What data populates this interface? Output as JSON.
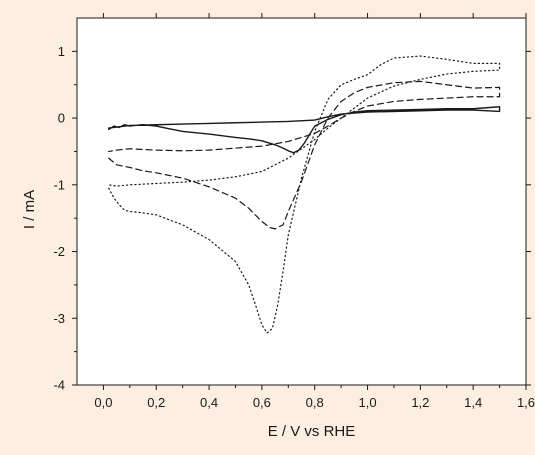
{
  "colors": {
    "page_background": "#fdeee2",
    "plot_background": "#ffffff",
    "ink": "#1a1a1a"
  },
  "chart_data": {
    "type": "line",
    "title": "",
    "xlabel": "E / V vs RHE",
    "ylabel": "I / mA",
    "xlim": [
      -0.1,
      1.6
    ],
    "ylim": [
      -4,
      1.5
    ],
    "x_ticks": [
      0.0,
      0.2,
      0.4,
      0.6,
      0.8,
      1.0,
      1.2,
      1.4,
      1.6
    ],
    "x_tick_labels": [
      "0,0",
      "0,2",
      "0,4",
      "0,6",
      "0,8",
      "1,0",
      "1,2",
      "1,4",
      "1,6"
    ],
    "y_ticks": [
      -4,
      -3,
      -2,
      -1,
      0,
      1
    ],
    "y_tick_labels": [
      "-4",
      "-3",
      "-2",
      "-1",
      "0",
      "1"
    ],
    "grid": false,
    "legend": "none",
    "series": [
      {
        "style": "solid",
        "x": [
          0.02,
          0.04,
          0.06,
          0.08,
          0.1,
          0.12,
          0.15,
          0.2,
          0.25,
          0.3,
          0.4,
          0.5,
          0.55,
          0.6,
          0.65,
          0.68,
          0.7,
          0.72,
          0.74,
          0.76,
          0.78,
          0.8,
          0.85,
          0.9,
          0.95,
          1.0,
          1.1,
          1.2,
          1.3,
          1.4,
          1.5,
          1.5,
          1.4,
          1.3,
          1.2,
          1.0,
          0.9,
          0.85,
          0.8,
          0.7,
          0.6,
          0.5,
          0.4,
          0.3,
          0.2,
          0.1,
          0.02
        ],
        "y": [
          -0.17,
          -0.12,
          -0.14,
          -0.1,
          -0.12,
          -0.11,
          -0.1,
          -0.12,
          -0.16,
          -0.2,
          -0.24,
          -0.29,
          -0.31,
          -0.34,
          -0.4,
          -0.45,
          -0.49,
          -0.52,
          -0.48,
          -0.38,
          -0.25,
          -0.12,
          -0.02,
          0.05,
          0.09,
          0.11,
          0.12,
          0.13,
          0.14,
          0.14,
          0.17,
          0.1,
          0.12,
          0.12,
          0.11,
          0.09,
          0.06,
          0.02,
          -0.03,
          -0.05,
          -0.06,
          -0.07,
          -0.08,
          -0.09,
          -0.1,
          -0.11,
          -0.15
        ]
      },
      {
        "style": "dashed",
        "x": [
          0.02,
          0.05,
          0.1,
          0.15,
          0.2,
          0.3,
          0.4,
          0.5,
          0.55,
          0.6,
          0.63,
          0.65,
          0.68,
          0.7,
          0.75,
          0.8,
          0.85,
          0.9,
          0.95,
          1.0,
          1.1,
          1.2,
          1.3,
          1.4,
          1.5,
          1.5,
          1.4,
          1.3,
          1.2,
          1.1,
          1.0,
          0.95,
          0.9,
          0.85,
          0.8,
          0.7,
          0.6,
          0.5,
          0.4,
          0.3,
          0.2,
          0.1,
          0.05,
          0.02
        ],
        "y": [
          -0.6,
          -0.7,
          -0.74,
          -0.79,
          -0.82,
          -0.9,
          -1.03,
          -1.2,
          -1.35,
          -1.55,
          -1.64,
          -1.66,
          -1.6,
          -1.4,
          -0.95,
          -0.4,
          0.0,
          0.25,
          0.38,
          0.46,
          0.53,
          0.55,
          0.5,
          0.45,
          0.46,
          0.32,
          0.32,
          0.3,
          0.28,
          0.25,
          0.18,
          0.1,
          0.0,
          -0.12,
          -0.23,
          -0.35,
          -0.42,
          -0.45,
          -0.48,
          -0.49,
          -0.48,
          -0.46,
          -0.48,
          -0.5
        ]
      },
      {
        "style": "dotted",
        "x": [
          0.02,
          0.04,
          0.06,
          0.08,
          0.1,
          0.15,
          0.2,
          0.3,
          0.4,
          0.5,
          0.55,
          0.58,
          0.6,
          0.62,
          0.64,
          0.66,
          0.68,
          0.7,
          0.75,
          0.8,
          0.85,
          0.9,
          0.95,
          1.0,
          1.05,
          1.1,
          1.2,
          1.3,
          1.4,
          1.5,
          1.5,
          1.4,
          1.3,
          1.2,
          1.1,
          1.0,
          0.95,
          0.9,
          0.85,
          0.8,
          0.7,
          0.6,
          0.5,
          0.4,
          0.3,
          0.2,
          0.1,
          0.05,
          0.02
        ],
        "y": [
          -1.05,
          -1.2,
          -1.3,
          -1.38,
          -1.4,
          -1.42,
          -1.45,
          -1.6,
          -1.82,
          -2.15,
          -2.5,
          -2.85,
          -3.1,
          -3.22,
          -3.15,
          -2.8,
          -2.3,
          -1.75,
          -0.9,
          -0.2,
          0.28,
          0.5,
          0.58,
          0.65,
          0.8,
          0.9,
          0.93,
          0.88,
          0.82,
          0.82,
          0.72,
          0.7,
          0.66,
          0.58,
          0.48,
          0.3,
          0.15,
          0.0,
          -0.15,
          -0.32,
          -0.6,
          -0.8,
          -0.88,
          -0.93,
          -0.96,
          -0.98,
          -1.0,
          -1.02,
          -1.0
        ]
      }
    ]
  }
}
